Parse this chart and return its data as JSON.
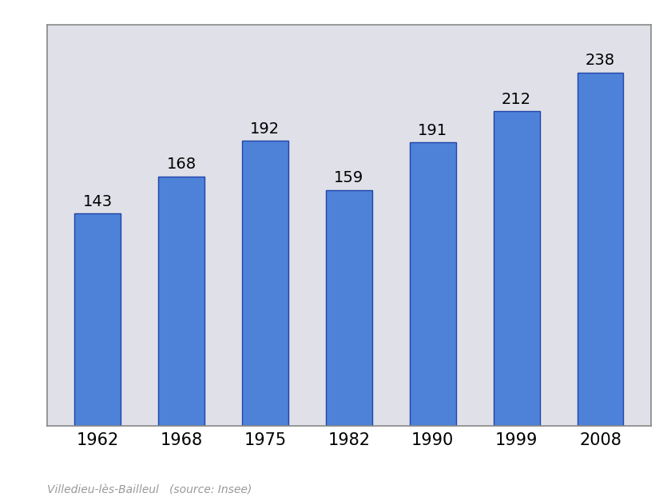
{
  "years": [
    "1962",
    "1968",
    "1975",
    "1982",
    "1990",
    "1999",
    "2008"
  ],
  "values": [
    143,
    168,
    192,
    159,
    191,
    212,
    238
  ],
  "bar_color": "#4d82d8",
  "bar_edgecolor": "#2244aa",
  "background_color": "#E0E0E8",
  "outer_background": "#FFFFFF",
  "label_fontsize": 14,
  "tick_fontsize": 15,
  "caption": "Villedieu-lès-Bailleul   (source: Insee)",
  "caption_fontsize": 10,
  "caption_color": "#999999",
  "ylim": [
    0,
    270
  ],
  "border_color": "#888888",
  "bar_width": 0.55
}
